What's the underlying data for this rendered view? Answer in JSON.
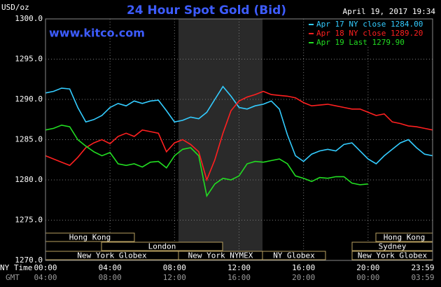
{
  "chart_data": {
    "type": "line",
    "title": "24 Hour Spot Gold (Bid)",
    "timestamp": "April 19, 2017 19:34",
    "y_label": "USD/oz",
    "site": "www.kitco.com",
    "x_label_ny": "NY Time",
    "x_label_gmt": "GMT",
    "x": [
      0,
      0.5,
      1,
      1.5,
      2,
      2.5,
      3,
      3.5,
      4,
      4.5,
      5,
      5.5,
      6,
      6.5,
      7,
      7.5,
      8,
      8.5,
      9,
      9.5,
      10,
      10.5,
      11,
      11.5,
      12,
      12.5,
      13,
      13.5,
      14,
      14.5,
      15,
      15.5,
      16,
      16.5,
      17,
      17.5,
      18,
      18.5,
      19,
      19.5,
      20,
      20.5,
      21,
      21.5,
      22,
      22.5,
      23,
      23.5,
      24
    ],
    "series": [
      {
        "name": "Apr 17 NY close 1284.00",
        "color": "#33ccff",
        "values": [
          1290.8,
          1291.0,
          1291.4,
          1291.3,
          1289.0,
          1287.2,
          1287.5,
          1288.0,
          1289.0,
          1289.5,
          1289.2,
          1289.8,
          1289.5,
          1289.8,
          1289.9,
          1288.6,
          1287.2,
          1287.4,
          1287.8,
          1287.6,
          1288.4,
          1290.0,
          1291.6,
          1290.4,
          1289.0,
          1288.8,
          1289.2,
          1289.4,
          1289.8,
          1288.8,
          1285.6,
          1283.0,
          1282.3,
          1283.2,
          1283.6,
          1283.8,
          1283.6,
          1284.4,
          1284.6,
          1283.6,
          1282.6,
          1282.0,
          1283.0,
          1283.8,
          1284.6,
          1285.0,
          1284.0,
          1283.2,
          1283.0
        ]
      },
      {
        "name": "Apr 18 NY close 1289.20",
        "color": "#ff2020",
        "values": [
          1283.0,
          1282.6,
          1282.2,
          1281.8,
          1282.8,
          1284.0,
          1284.6,
          1285.0,
          1284.5,
          1285.4,
          1285.8,
          1285.4,
          1286.2,
          1286.0,
          1285.8,
          1283.5,
          1284.6,
          1285.0,
          1284.4,
          1283.5,
          1280.0,
          1282.5,
          1285.8,
          1288.6,
          1289.8,
          1290.3,
          1290.6,
          1291.0,
          1290.6,
          1290.5,
          1290.4,
          1290.2,
          1289.6,
          1289.2,
          1289.3,
          1289.4,
          1289.2,
          1289.0,
          1288.8,
          1288.8,
          1288.4,
          1288.0,
          1288.2,
          1287.2,
          1287.0,
          1286.7,
          1286.6,
          1286.4,
          1286.2
        ]
      },
      {
        "name": "Apr 19 Last 1279.90",
        "color": "#22dd22",
        "values": [
          1286.2,
          1286.4,
          1286.8,
          1286.6,
          1285.0,
          1284.2,
          1283.5,
          1283.0,
          1283.4,
          1282.0,
          1281.8,
          1282.0,
          1281.6,
          1282.2,
          1282.3,
          1281.5,
          1283.0,
          1283.8,
          1284.0,
          1283.0,
          1278.0,
          1279.5,
          1280.2,
          1280.0,
          1280.5,
          1282.0,
          1282.3,
          1282.2,
          1282.4,
          1282.6,
          1282.0,
          1280.5,
          1280.2,
          1279.8,
          1280.3,
          1280.2,
          1280.4,
          1280.4,
          1279.6,
          1279.4,
          1279.5,
          null,
          null,
          null,
          null,
          null,
          null,
          null,
          null
        ]
      }
    ],
    "xlim": [
      0,
      24
    ],
    "ylim": [
      1270,
      1300
    ],
    "yticks": [
      {
        "value": 1270,
        "label": "1270.0"
      },
      {
        "value": 1275,
        "label": "1275.0"
      },
      {
        "value": 1280,
        "label": "1280.0"
      },
      {
        "value": 1285,
        "label": "1285.0"
      },
      {
        "value": 1290,
        "label": "1290.0"
      },
      {
        "value": 1295,
        "label": "1295.0"
      },
      {
        "value": 1300,
        "label": "1300.0"
      }
    ],
    "xticks": [
      {
        "value": 0,
        "label": "00:00"
      },
      {
        "value": 4,
        "label": "04:00"
      },
      {
        "value": 8,
        "label": "08:00"
      },
      {
        "value": 12,
        "label": "12:00"
      },
      {
        "value": 16,
        "label": "16:00"
      },
      {
        "value": 20,
        "label": "20:00"
      },
      {
        "value": 24,
        "label": "23:59"
      }
    ],
    "xticks_gmt": [
      {
        "value": 0,
        "label": "04:00"
      },
      {
        "value": 4,
        "label": "08:00"
      },
      {
        "value": 8,
        "label": "12:00"
      },
      {
        "value": 12,
        "label": "16:00"
      },
      {
        "value": 16,
        "label": "20:00"
      },
      {
        "value": 20,
        "label": "00:00"
      },
      {
        "value": 24,
        "label": "03:59"
      }
    ],
    "sessions": [
      "Hong Kong",
      "London",
      "New York Globex",
      "New York NYMEX",
      "NY Globex",
      "Hong Kong",
      "Sydney",
      "New York Globex"
    ],
    "grid": true
  }
}
